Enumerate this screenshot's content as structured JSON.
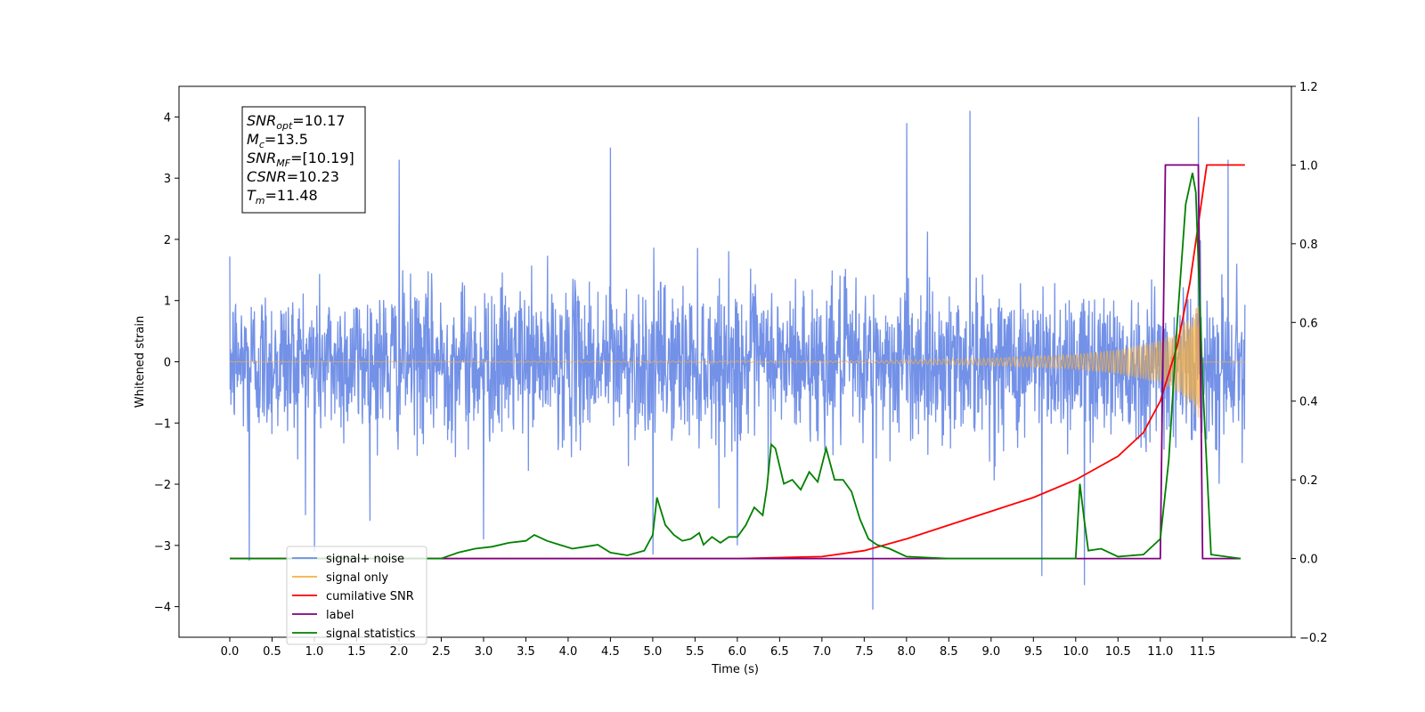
{
  "chart_data": {
    "type": "line",
    "title": "",
    "xlabel": "Time (s)",
    "ylabel": "Whitened strain",
    "xlim": [
      -0.6,
      12.55
    ],
    "ylim": [
      -4.5,
      4.5
    ],
    "y2lim": [
      -0.2,
      1.2
    ],
    "x_ticks": [
      "0.0",
      "0.5",
      "1.0",
      "1.5",
      "2.0",
      "2.5",
      "3.0",
      "3.5",
      "4.0",
      "4.5",
      "5.0",
      "5.5",
      "6.0",
      "6.5",
      "7.0",
      "7.5",
      "8.0",
      "8.5",
      "9.0",
      "9.5",
      "10.0",
      "10.5",
      "11.0",
      "11.5"
    ],
    "y_ticks": [
      "−4",
      "−3",
      "−2",
      "−1",
      "0",
      "1",
      "2",
      "3",
      "4"
    ],
    "y2_ticks": [
      "−0.2",
      "0.0",
      "0.2",
      "0.4",
      "0.6",
      "0.8",
      "1.0",
      "1.2"
    ],
    "annotation": {
      "lines": [
        {
          "var": "SNR",
          "sub": "opt",
          "text": "=10.17"
        },
        {
          "var": "M",
          "sub": "c",
          "text": "=13.5"
        },
        {
          "var": "SNR",
          "sub": "MF",
          "text": "=[10.19]"
        },
        {
          "var": "CSNR",
          "sub": "",
          "text": "=10.23"
        },
        {
          "var": "T",
          "sub": "m",
          "text": "=11.48"
        }
      ]
    },
    "legend": {
      "placement": "lower-left",
      "entries": [
        {
          "label": "signal+ noise",
          "color": "#6b8be6"
        },
        {
          "label": "signal only",
          "color": "#f5b042"
        },
        {
          "label": "cumilative SNR",
          "color": "#ff0000"
        },
        {
          "label": "label",
          "color": "#7f007f"
        },
        {
          "label": "signal statistics",
          "color": "#008000"
        }
      ]
    },
    "series": [
      {
        "name": "signal+ noise",
        "axis": "left",
        "color": "#6b8be6",
        "x_range": [
          0.0,
          12.0
        ],
        "typical_envelope": [
          -1.8,
          1.5
        ],
        "spikes": [
          [
            0.23,
            -3.25
          ],
          [
            1.0,
            -3.1
          ],
          [
            2.0,
            3.3
          ],
          [
            3.0,
            -2.9
          ],
          [
            4.5,
            3.5
          ],
          [
            5.0,
            -3.15
          ],
          [
            6.0,
            -3.0
          ],
          [
            7.6,
            -4.05
          ],
          [
            8.0,
            3.9
          ],
          [
            8.75,
            4.1
          ],
          [
            9.6,
            -3.5
          ],
          [
            10.1,
            -3.65
          ],
          [
            11.45,
            4.0
          ],
          [
            11.8,
            3.3
          ]
        ]
      },
      {
        "name": "signal only",
        "axis": "left",
        "color": "#f5b042",
        "x_range": [
          0.0,
          12.0
        ],
        "merger_time": 11.48,
        "amplitude_x": [
          0.0,
          7.5,
          9.0,
          10.0,
          10.5,
          11.0,
          11.2,
          11.35,
          11.48
        ],
        "amplitude_y": [
          0.003,
          0.015,
          0.06,
          0.12,
          0.2,
          0.35,
          0.5,
          0.75,
          1.0
        ]
      },
      {
        "name": "cumilative SNR",
        "axis": "right",
        "color": "#ff0000",
        "x": [
          0.0,
          6.0,
          7.0,
          7.5,
          8.0,
          8.5,
          9.0,
          9.5,
          10.0,
          10.5,
          10.8,
          11.0,
          11.2,
          11.35,
          11.45,
          11.55,
          12.0
        ],
        "y": [
          0.0,
          0.0,
          0.005,
          0.02,
          0.05,
          0.085,
          0.12,
          0.155,
          0.2,
          0.26,
          0.32,
          0.4,
          0.54,
          0.7,
          0.85,
          1.0,
          1.0
        ]
      },
      {
        "name": "label",
        "axis": "right",
        "color": "#7f007f",
        "x": [
          0.0,
          11.0,
          11.06,
          11.45,
          11.5,
          11.95
        ],
        "y": [
          0.0,
          0.0,
          1.0,
          1.0,
          0.0,
          0.0
        ]
      },
      {
        "name": "signal statistics",
        "axis": "right",
        "color": "#008000",
        "x": [
          0.0,
          2.5,
          2.7,
          2.9,
          3.1,
          3.3,
          3.5,
          3.6,
          3.75,
          3.9,
          4.05,
          4.2,
          4.35,
          4.5,
          4.7,
          4.9,
          5.0,
          5.05,
          5.15,
          5.25,
          5.35,
          5.45,
          5.55,
          5.6,
          5.7,
          5.8,
          5.9,
          6.0,
          6.1,
          6.2,
          6.3,
          6.35,
          6.4,
          6.45,
          6.55,
          6.65,
          6.75,
          6.85,
          6.95,
          7.05,
          7.15,
          7.25,
          7.35,
          7.45,
          7.55,
          7.65,
          7.8,
          8.0,
          8.5,
          10.0,
          10.05,
          10.1,
          10.15,
          10.3,
          10.5,
          10.8,
          11.0,
          11.1,
          11.2,
          11.3,
          11.38,
          11.42,
          11.5,
          11.6,
          11.95
        ],
        "y": [
          0.0,
          0.0,
          0.015,
          0.025,
          0.03,
          0.04,
          0.045,
          0.06,
          0.045,
          0.035,
          0.025,
          0.03,
          0.035,
          0.015,
          0.008,
          0.02,
          0.06,
          0.155,
          0.085,
          0.06,
          0.045,
          0.05,
          0.065,
          0.035,
          0.055,
          0.04,
          0.055,
          0.055,
          0.085,
          0.13,
          0.11,
          0.18,
          0.29,
          0.28,
          0.19,
          0.2,
          0.175,
          0.22,
          0.195,
          0.28,
          0.2,
          0.2,
          0.17,
          0.1,
          0.05,
          0.035,
          0.025,
          0.005,
          0.0,
          0.0,
          0.19,
          0.1,
          0.02,
          0.025,
          0.005,
          0.01,
          0.05,
          0.25,
          0.6,
          0.9,
          0.98,
          0.93,
          0.45,
          0.01,
          0.0
        ]
      }
    ]
  }
}
